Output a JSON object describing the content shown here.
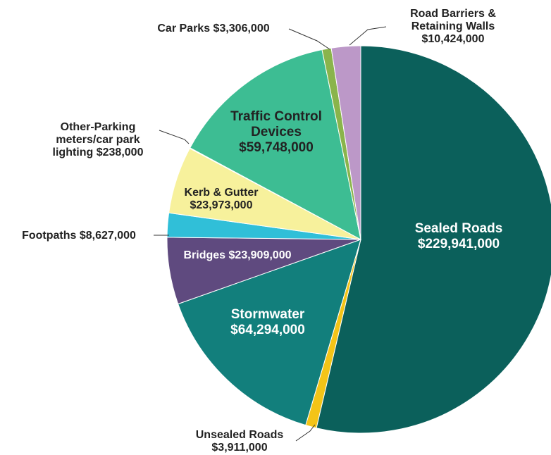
{
  "chart_data": {
    "type": "pie",
    "title": "",
    "start_angle_deg": 0,
    "direction": "clockwise",
    "slices": [
      {
        "label": "Sealed Roads",
        "value_text": "$229,941,000",
        "value": 229941000,
        "color": "#0b605b"
      },
      {
        "label": "Unsealed Roads",
        "value_text": "$3,911,000",
        "value": 3911000,
        "color": "#f3c417"
      },
      {
        "label": "Stormwater",
        "value_text": "$64,294,000",
        "value": 64294000,
        "color": "#127f7c"
      },
      {
        "label": "Bridges",
        "value_text": "$23,909,000",
        "value": 23909000,
        "color": "#5f4a7f"
      },
      {
        "label": "Footpaths",
        "value_text": "$8,627,000",
        "value": 8627000,
        "color": "#30bfd8"
      },
      {
        "label": "Kerb & Gutter",
        "value_text": "$23,973,000",
        "value": 23973000,
        "color": "#f7f19c"
      },
      {
        "label": "Other-Parking meters/car park lighting",
        "value_text": "$238,000",
        "value": 238000,
        "color": "#c9e9a0"
      },
      {
        "label": "Traffic Control Devices",
        "value_text": "$59,748,000",
        "value": 59748000,
        "color": "#3dbd93"
      },
      {
        "label": "Car Parks",
        "value_text": "$3,306,000",
        "value": 3306000,
        "color": "#8ab44b"
      },
      {
        "label": "Road Barriers & Retaining Walls",
        "value_text": "$10,424,000",
        "value": 10424000,
        "color": "#bc98c8"
      }
    ],
    "labels": {
      "sealed_roads": [
        "Sealed Roads",
        "$229,941,000"
      ],
      "unsealed_roads": [
        "Unsealed Roads",
        "$3,911,000"
      ],
      "stormwater": [
        "Stormwater",
        "$64,294,000"
      ],
      "bridges": [
        "Bridges $23,909,000"
      ],
      "footpaths": [
        "Footpaths $8,627,000"
      ],
      "kerb_gutter": [
        "Kerb & Gutter",
        "$23,973,000"
      ],
      "other_parking": [
        "Other-Parking",
        "meters/car park",
        "lighting $238,000"
      ],
      "traffic_control": [
        "Traffic Control",
        "Devices",
        "$59,748,000"
      ],
      "car_parks": [
        "Car Parks $3,306,000"
      ],
      "road_barriers": [
        "Road Barriers &",
        "Retaining Walls",
        "$10,424,000"
      ]
    }
  }
}
